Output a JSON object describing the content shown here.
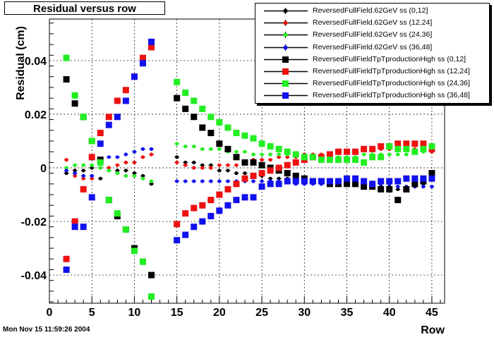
{
  "chart_data": {
    "type": "scatter",
    "title": "Residual versus row",
    "xlabel": "Row",
    "ylabel": "Residual (cm)",
    "xlim": [
      0,
      46.5
    ],
    "ylim": [
      -0.0505,
      0.0555
    ],
    "x_ticks": [
      0,
      5,
      10,
      15,
      20,
      25,
      30,
      35,
      40,
      45
    ],
    "y_ticks": [
      -0.04,
      -0.02,
      0,
      0.02,
      0.04
    ],
    "x_tick_labels": [
      "0",
      "5",
      "10",
      "15",
      "20",
      "25",
      "30",
      "35",
      "40",
      "45"
    ],
    "y_tick_labels": [
      "-0.04",
      "-0.02",
      "0",
      "0.02",
      "0.04"
    ],
    "grid": true,
    "legend_position": "top-right",
    "footer": "Mon Nov 15 11:59:26 2004",
    "series": [
      {
        "name": "ReversedFullField.62GeV ss (0,12]",
        "color": "#000000",
        "marker": "circle",
        "x": [
          2,
          3,
          4,
          5,
          6,
          7,
          8,
          9,
          10,
          11,
          12,
          15,
          16,
          17,
          18,
          19,
          20,
          21,
          22,
          23,
          24,
          25,
          26,
          27,
          28,
          29,
          30,
          31,
          32,
          33,
          34,
          35,
          36,
          37,
          38,
          39,
          40,
          41,
          42,
          43,
          44,
          45
        ],
        "y": [
          -0.002,
          -0.001,
          -0.001,
          0.0,
          -0.004,
          -0.001,
          -0.001,
          -0.001,
          -0.002,
          -0.003,
          -0.006,
          0.004,
          0.002,
          0.002,
          0.001,
          0.001,
          -0.001,
          -0.001,
          -0.002,
          -0.002,
          -0.003,
          -0.003,
          -0.004,
          -0.004,
          -0.004,
          -0.005,
          -0.005,
          -0.005,
          -0.006,
          -0.006,
          -0.006,
          -0.006,
          -0.006,
          -0.006,
          -0.006,
          -0.007,
          -0.007,
          -0.008,
          -0.008,
          -0.007,
          -0.006,
          -0.004
        ]
      },
      {
        "name": "ReversedFullField.62GeV ss (12,24]",
        "color": "#ee1111",
        "marker": "circle",
        "x": [
          2,
          3,
          4,
          5,
          6,
          7,
          8,
          9,
          10,
          11,
          12,
          15,
          16,
          17,
          18,
          19,
          20,
          21,
          22,
          23,
          24,
          25,
          26,
          27,
          28,
          29,
          30,
          31,
          32,
          33,
          34,
          35,
          36,
          37,
          38,
          39,
          40,
          41,
          42,
          43,
          44,
          45
        ],
        "y": [
          0.003,
          -0.003,
          -0.004,
          -0.004,
          0.0,
          0.0,
          0.001,
          0.002,
          0.002,
          0.004,
          0.005,
          0.002,
          0.001,
          0.0,
          0.0,
          0.0,
          0.001,
          0.001,
          0.001,
          0.002,
          0.003,
          0.003,
          0.003,
          0.004,
          0.004,
          0.004,
          0.005,
          0.005,
          0.005,
          0.005,
          0.006,
          0.006,
          0.006,
          0.007,
          0.007,
          0.007,
          0.007,
          0.007,
          0.007,
          0.007,
          0.007,
          0.006
        ]
      },
      {
        "name": "ReversedFullField.62GeV ss (24,36]",
        "color": "#22ee22",
        "marker": "circle",
        "x": [
          2,
          3,
          4,
          5,
          6,
          7,
          8,
          9,
          10,
          11,
          12,
          15,
          16,
          17,
          18,
          19,
          20,
          21,
          22,
          23,
          24,
          25,
          26,
          27,
          28,
          29,
          30,
          31,
          32,
          33,
          34,
          35,
          36,
          37,
          38,
          39,
          40,
          41,
          42,
          43,
          44,
          45
        ],
        "y": [
          0.0,
          0.001,
          0.001,
          0.001,
          0.0,
          -0.001,
          -0.002,
          -0.003,
          -0.003,
          -0.004,
          -0.005,
          0.009,
          0.008,
          0.008,
          0.007,
          0.007,
          0.007,
          0.006,
          0.006,
          0.006,
          0.005,
          0.005,
          0.005,
          0.005,
          0.005,
          0.005,
          0.004,
          0.004,
          0.004,
          0.004,
          0.004,
          0.004,
          0.004,
          0.005,
          0.005,
          0.005,
          0.005,
          0.005,
          0.005,
          0.006,
          0.006,
          0.007
        ]
      },
      {
        "name": "ReversedFullField.62GeV ss (36,48]",
        "color": "#1111ee",
        "marker": "circle",
        "x": [
          2,
          3,
          4,
          5,
          6,
          7,
          8,
          9,
          10,
          11,
          12,
          15,
          16,
          17,
          18,
          19,
          20,
          21,
          22,
          23,
          24,
          25,
          26,
          27,
          28,
          29,
          30,
          31,
          32,
          33,
          34,
          35,
          36,
          37,
          38,
          39,
          40,
          41,
          42,
          43,
          44,
          45
        ],
        "y": [
          -0.001,
          -0.002,
          -0.003,
          -0.003,
          0.003,
          0.004,
          0.004,
          0.005,
          0.006,
          0.007,
          0.007,
          -0.005,
          -0.005,
          -0.005,
          -0.005,
          -0.005,
          -0.005,
          -0.005,
          -0.005,
          -0.005,
          -0.005,
          -0.005,
          -0.005,
          -0.005,
          -0.005,
          -0.006,
          -0.006,
          -0.006,
          -0.006,
          -0.006,
          -0.006,
          -0.006,
          -0.006,
          -0.006,
          -0.006,
          -0.006,
          -0.006,
          -0.007,
          -0.007,
          -0.007,
          -0.007,
          -0.007
        ]
      },
      {
        "name": "ReversedFullFieldTpTproductionHigh ss (0,12]",
        "color": "#000000",
        "marker": "square",
        "x": [
          2,
          3,
          4,
          5,
          6,
          7,
          8,
          9,
          10,
          11,
          12,
          15,
          16,
          17,
          18,
          19,
          20,
          21,
          22,
          23,
          24,
          25,
          26,
          27,
          28,
          29,
          30,
          31,
          32,
          33,
          34,
          35,
          36,
          37,
          38,
          39,
          40,
          41,
          42,
          43,
          44,
          45
        ],
        "y": [
          0.033,
          0.024,
          0.019,
          0.01,
          0.003,
          -0.012,
          -0.018,
          -0.023,
          -0.03,
          -0.035,
          -0.04,
          0.026,
          0.022,
          0.019,
          0.015,
          0.013,
          0.009,
          0.007,
          0.004,
          0.002,
          0.002,
          0.001,
          0.0,
          -0.001,
          -0.002,
          -0.003,
          -0.004,
          -0.005,
          -0.005,
          -0.006,
          -0.006,
          -0.006,
          -0.006,
          -0.007,
          -0.007,
          -0.008,
          -0.008,
          -0.012,
          -0.008,
          -0.006,
          -0.005,
          -0.002
        ]
      },
      {
        "name": "ReversedFullFieldTpTproductionHigh ss (12,24]",
        "color": "#ee1111",
        "marker": "square",
        "x": [
          2,
          3,
          4,
          5,
          6,
          7,
          8,
          9,
          10,
          11,
          12,
          15,
          16,
          17,
          18,
          19,
          20,
          21,
          22,
          23,
          24,
          25,
          26,
          27,
          28,
          29,
          30,
          31,
          32,
          33,
          34,
          35,
          36,
          37,
          38,
          39,
          40,
          41,
          42,
          43,
          44,
          45
        ],
        "y": [
          -0.034,
          -0.02,
          -0.008,
          0.004,
          0.013,
          0.019,
          0.025,
          0.029,
          0.034,
          0.041,
          0.045,
          -0.021,
          -0.017,
          -0.015,
          -0.014,
          -0.012,
          -0.01,
          -0.008,
          -0.006,
          -0.004,
          -0.003,
          -0.002,
          -0.001,
          0.0,
          0.001,
          0.002,
          0.003,
          0.004,
          0.004,
          0.005,
          0.006,
          0.006,
          0.006,
          0.007,
          0.007,
          0.008,
          0.008,
          0.009,
          0.009,
          0.009,
          0.009,
          0.007
        ]
      },
      {
        "name": "ReversedFullFieldTpTproductionHigh ss (24,36]",
        "color": "#22ee22",
        "marker": "square",
        "x": [
          2,
          3,
          4,
          5,
          6,
          7,
          8,
          9,
          10,
          11,
          12,
          15,
          16,
          17,
          18,
          19,
          20,
          21,
          22,
          23,
          24,
          25,
          26,
          27,
          28,
          29,
          30,
          31,
          32,
          33,
          34,
          35,
          36,
          37,
          38,
          39,
          40,
          41,
          42,
          43,
          44,
          45
        ],
        "y": [
          0.041,
          0.027,
          0.019,
          0.01,
          0.002,
          -0.012,
          -0.017,
          -0.023,
          -0.031,
          -0.035,
          -0.048,
          0.032,
          0.028,
          0.025,
          0.022,
          0.019,
          0.017,
          0.015,
          0.013,
          0.012,
          0.011,
          0.009,
          0.008,
          0.007,
          0.006,
          0.005,
          0.004,
          0.004,
          0.003,
          0.003,
          0.003,
          0.003,
          0.003,
          0.002,
          0.004,
          0.004,
          0.008,
          0.007,
          0.007,
          0.006,
          0.007,
          0.008
        ]
      },
      {
        "name": "ReversedFullFieldTpTproductionHigh ss (36,48]",
        "color": "#1111ee",
        "marker": "square",
        "x": [
          2,
          3,
          4,
          5,
          6,
          7,
          8,
          9,
          10,
          11,
          12,
          15,
          16,
          17,
          18,
          19,
          20,
          21,
          22,
          23,
          24,
          25,
          26,
          27,
          28,
          29,
          30,
          31,
          32,
          33,
          34,
          35,
          36,
          37,
          38,
          39,
          40,
          41,
          42,
          43,
          44,
          45
        ],
        "y": [
          -0.038,
          -0.022,
          -0.022,
          -0.011,
          0.009,
          0.016,
          0.019,
          0.025,
          0.034,
          0.039,
          0.047,
          -0.027,
          -0.025,
          -0.022,
          -0.02,
          -0.018,
          -0.016,
          -0.014,
          -0.012,
          -0.011,
          -0.011,
          -0.007,
          -0.006,
          -0.006,
          -0.005,
          -0.005,
          -0.005,
          -0.005,
          -0.005,
          -0.005,
          -0.005,
          -0.004,
          -0.004,
          -0.005,
          -0.006,
          -0.005,
          -0.005,
          -0.005,
          -0.004,
          -0.004,
          -0.004,
          -0.004
        ]
      }
    ]
  }
}
